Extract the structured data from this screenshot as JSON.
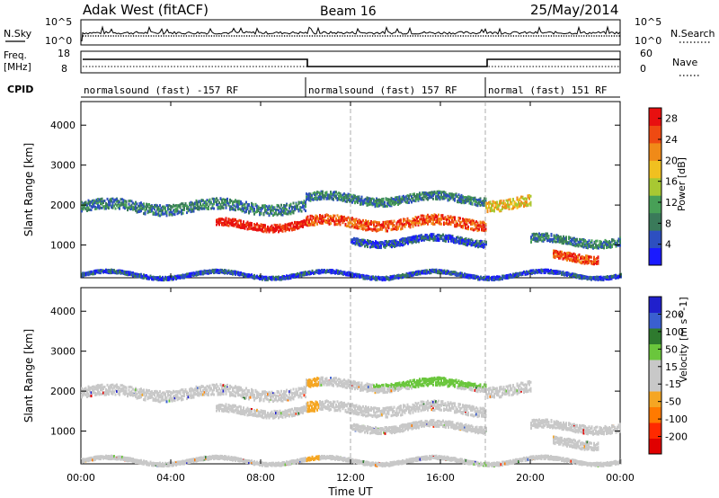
{
  "header": {
    "station": "Adak West (fitACF)",
    "beam": "Beam 16",
    "date": "25/May/2014"
  },
  "strip_labels": {
    "nsky": "N.Sky",
    "nsky_ticks": [
      "10^5",
      "10^0"
    ],
    "nsearch": "N.Search",
    "nsearch_ticks": [
      "10^5",
      "10^0"
    ],
    "freq_line1": "Freq.",
    "freq_line2": "[MHz]",
    "freq_ticks": [
      "18",
      "8"
    ],
    "nave": "Nave",
    "nave_ticks": [
      "60",
      "0"
    ],
    "cpid": "CPID"
  },
  "cpid_segments": [
    {
      "start": 0,
      "end": 10,
      "label": "normalsound (fast) -157 RF"
    },
    {
      "start": 10,
      "end": 18,
      "label": "normalsound (fast) 157 RF"
    },
    {
      "start": 18,
      "end": 24,
      "label": "normal (fast) 151 RF"
    }
  ],
  "colors": {
    "power_scale": [
      "#1a1aff",
      "#2d4fc0",
      "#3a7a5a",
      "#48a057",
      "#a8c832",
      "#f0c020",
      "#f08a18",
      "#ef4a12",
      "#e81010"
    ],
    "velocity_scale": [
      "#2020cc",
      "#3a5fd0",
      "#2e7a2e",
      "#6ac63c",
      "#c8c8c8",
      "#c8c8c8",
      "#f5a623",
      "#ff7a00",
      "#ff2a00",
      "#e00000"
    ]
  },
  "chart_data": [
    {
      "type": "heatmap",
      "panel": "power",
      "ylabel": "Slant Range [km]",
      "yticks": [
        "1000",
        "2000",
        "3000",
        "4000"
      ],
      "xticks": [
        "00:00",
        "04:00",
        "08:00",
        "12:00",
        "16:00",
        "20:00",
        "00:00"
      ],
      "xlim": [
        0,
        24
      ],
      "ylim": [
        180,
        4590
      ],
      "colorbar_label": "Power [dB]",
      "colorbar_ticks": [
        "4",
        "8",
        "12",
        "16",
        "20",
        "24",
        "28"
      ],
      "colorbar_range": [
        0,
        30
      ]
    },
    {
      "type": "heatmap",
      "panel": "velocity",
      "ylabel": "Slant Range [km]",
      "yticks": [
        "1000",
        "2000",
        "3000",
        "4000"
      ],
      "xticks": [
        "00:00",
        "04:00",
        "08:00",
        "12:00",
        "16:00",
        "20:00",
        "00:00"
      ],
      "xlabel": "Time UT",
      "xlim": [
        0,
        24
      ],
      "ylim": [
        180,
        4590
      ],
      "colorbar_label": "Velocity [m s^-1]",
      "colorbar_ticks": [
        "200",
        "100",
        "50",
        "15",
        "-15",
        "-50",
        "-100",
        "-200"
      ]
    }
  ]
}
